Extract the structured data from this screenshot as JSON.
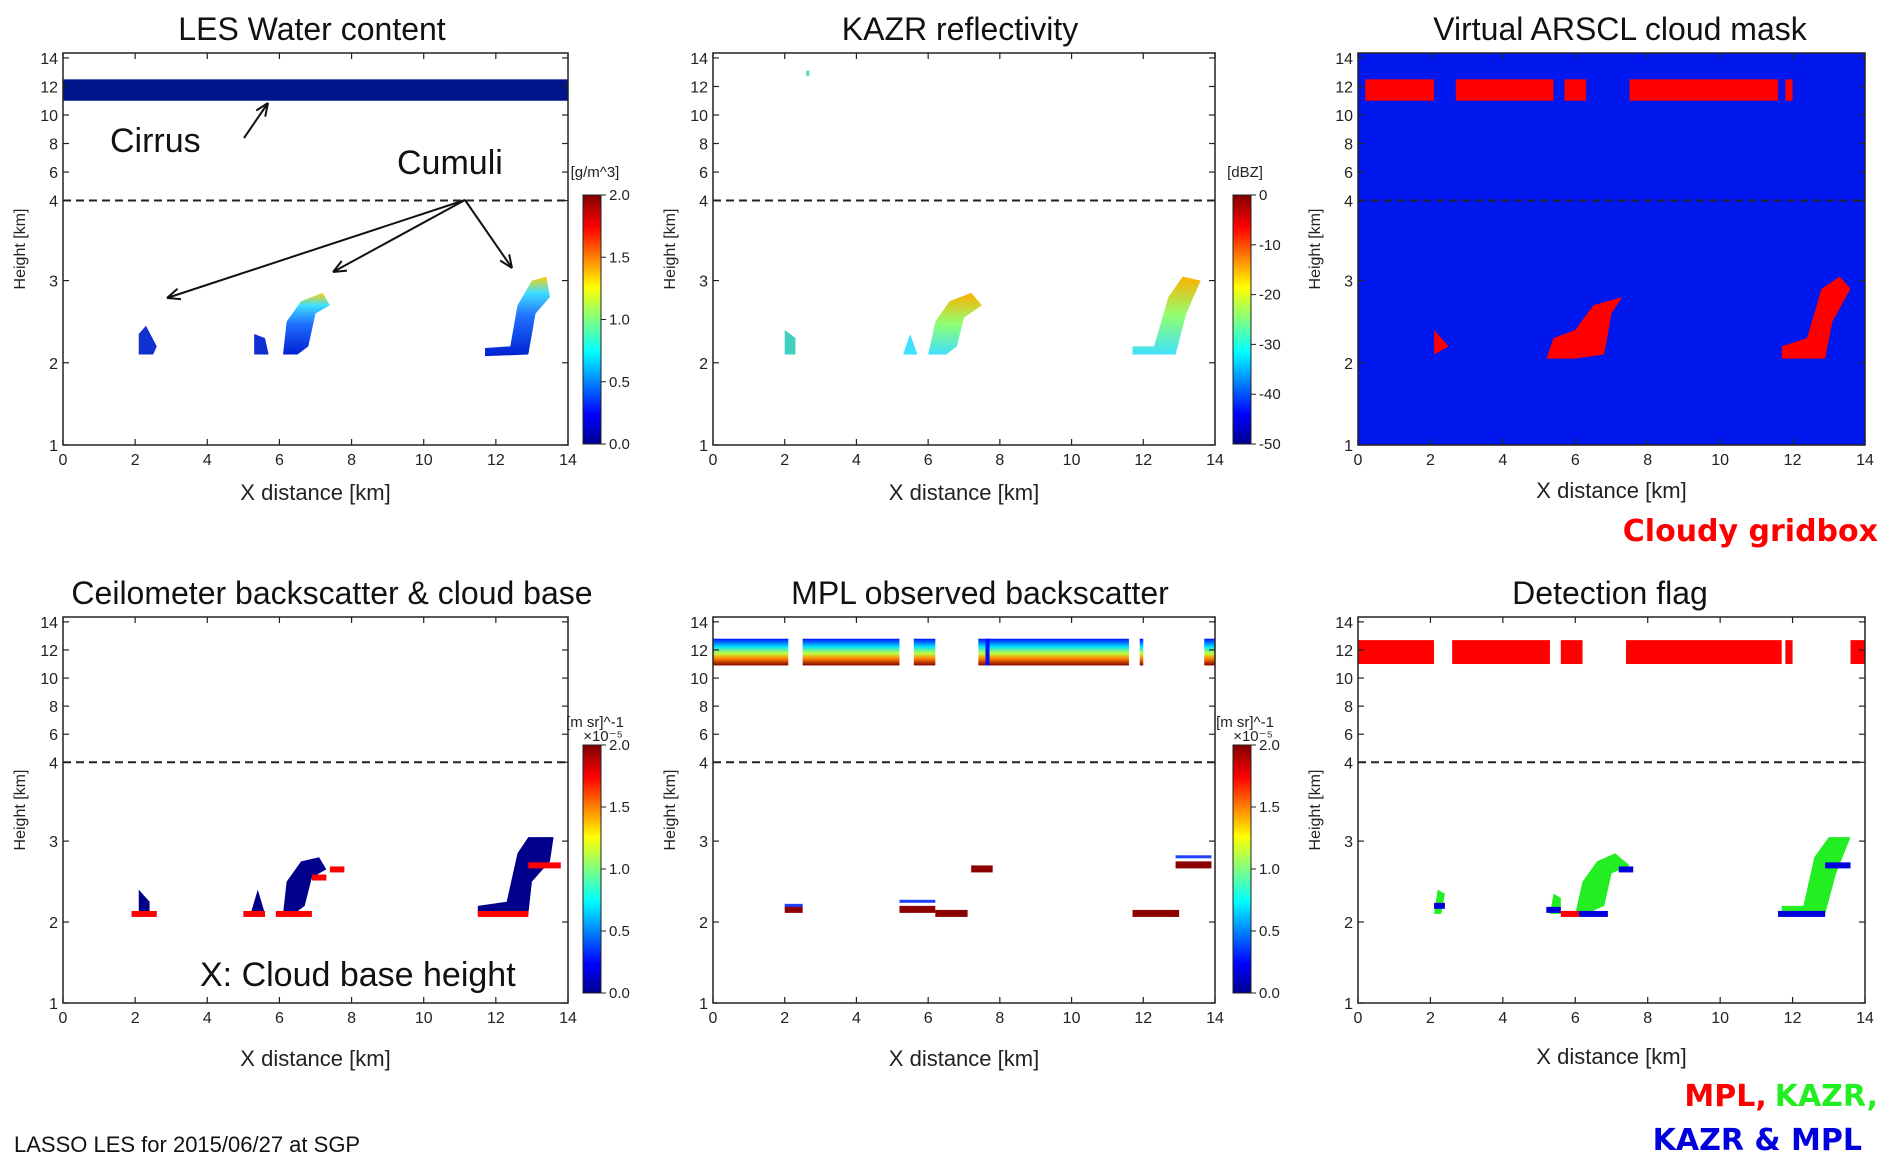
{
  "caption": "LASSO LES for 2015/06/27 at SGP",
  "legend_cloudy": "Cloudy gridbox",
  "legend_flags": {
    "mpl": "MPL,",
    "kazr": "KAZR,",
    "both": "KAZR & MPL"
  },
  "colors": {
    "red": "#ff0000",
    "green": "#22ee22",
    "blue": "#0000dd",
    "navy": "#00008b",
    "fill_blue": "#0018ee"
  },
  "annotations": {
    "cirrus": "Cirrus",
    "cumuli": "Cumuli",
    "cloud_base": "X: Cloud base height"
  },
  "chart_data": [
    {
      "type": "heatmap",
      "title": "LES Water content",
      "xlabel": "X distance [km]",
      "ylabel": "Height [km]",
      "xlim": [
        0,
        14
      ],
      "xticks": [
        "0",
        "2",
        "4",
        "6",
        "8",
        "10",
        "12",
        "14"
      ],
      "ytick_labels": [
        "1",
        "2",
        "3",
        "4",
        "6",
        "8",
        "10",
        "12",
        "14"
      ],
      "colorbar": {
        "label": "[g/m^3]",
        "ticks": [
          "2.0",
          "1.5",
          "1.0",
          "0.5",
          "0.0"
        ],
        "colormap": "jet"
      },
      "cirrus_layer_km": [
        11,
        12.5
      ],
      "cumulus_x_km": [
        2.2,
        5.8,
        7.3,
        13.0
      ]
    },
    {
      "type": "heatmap",
      "title": "KAZR reflectivity",
      "xlabel": "X distance [km]",
      "ylabel": "Height [km]",
      "xlim": [
        0,
        14
      ],
      "xticks": [
        "0",
        "2",
        "4",
        "6",
        "8",
        "10",
        "12",
        "14"
      ],
      "ytick_labels": [
        "1",
        "2",
        "3",
        "4",
        "6",
        "8",
        "10",
        "12",
        "14"
      ],
      "colorbar": {
        "label": "[dBZ]",
        "ticks": [
          "0",
          "-10",
          "-20",
          "-30",
          "-40",
          "-50"
        ],
        "colormap": "jet"
      }
    },
    {
      "type": "heatmap",
      "title": "Virtual ARSCL cloud mask",
      "xlabel": "X distance [km]",
      "ylabel": "Height [km]",
      "xlim": [
        0,
        14
      ],
      "xticks": [
        "0",
        "2",
        "4",
        "6",
        "8",
        "10",
        "12",
        "14"
      ],
      "ytick_labels": [
        "1",
        "2",
        "3",
        "4",
        "6",
        "8",
        "10",
        "12",
        "14"
      ]
    },
    {
      "type": "heatmap",
      "title": "Ceilometer backscatter & cloud base",
      "xlabel": "X distance [km]",
      "ylabel": "Height [km]",
      "xlim": [
        0,
        14
      ],
      "xticks": [
        "0",
        "2",
        "4",
        "6",
        "8",
        "10",
        "12",
        "14"
      ],
      "ytick_labels": [
        "1",
        "2",
        "3",
        "4",
        "6",
        "8",
        "10",
        "12",
        "14"
      ],
      "colorbar": {
        "label": "[m sr]^-1",
        "scale": "×10⁻⁵",
        "ticks": [
          "2.0",
          "1.5",
          "1.0",
          "0.5",
          "0.0"
        ],
        "colormap": "jet"
      }
    },
    {
      "type": "heatmap",
      "title": "MPL observed backscatter",
      "xlabel": "X distance [km]",
      "ylabel": "Height [km]",
      "xlim": [
        0,
        14
      ],
      "xticks": [
        "0",
        "2",
        "4",
        "6",
        "8",
        "10",
        "12",
        "14"
      ],
      "ytick_labels": [
        "1",
        "2",
        "3",
        "4",
        "6",
        "8",
        "10",
        "12",
        "14"
      ],
      "colorbar": {
        "label": "[m sr]^-1",
        "scale": "×10⁻⁵",
        "ticks": [
          "2.0",
          "1.5",
          "1.0",
          "0.5",
          "0.0"
        ],
        "colormap": "jet"
      }
    },
    {
      "type": "heatmap",
      "title": "Detection flag",
      "xlabel": "X distance [km]",
      "ylabel": "Height [km]",
      "xlim": [
        0,
        14
      ],
      "xticks": [
        "0",
        "2",
        "4",
        "6",
        "8",
        "10",
        "12",
        "14"
      ],
      "ytick_labels": [
        "1",
        "2",
        "3",
        "4",
        "6",
        "8",
        "10",
        "12",
        "14"
      ]
    }
  ]
}
